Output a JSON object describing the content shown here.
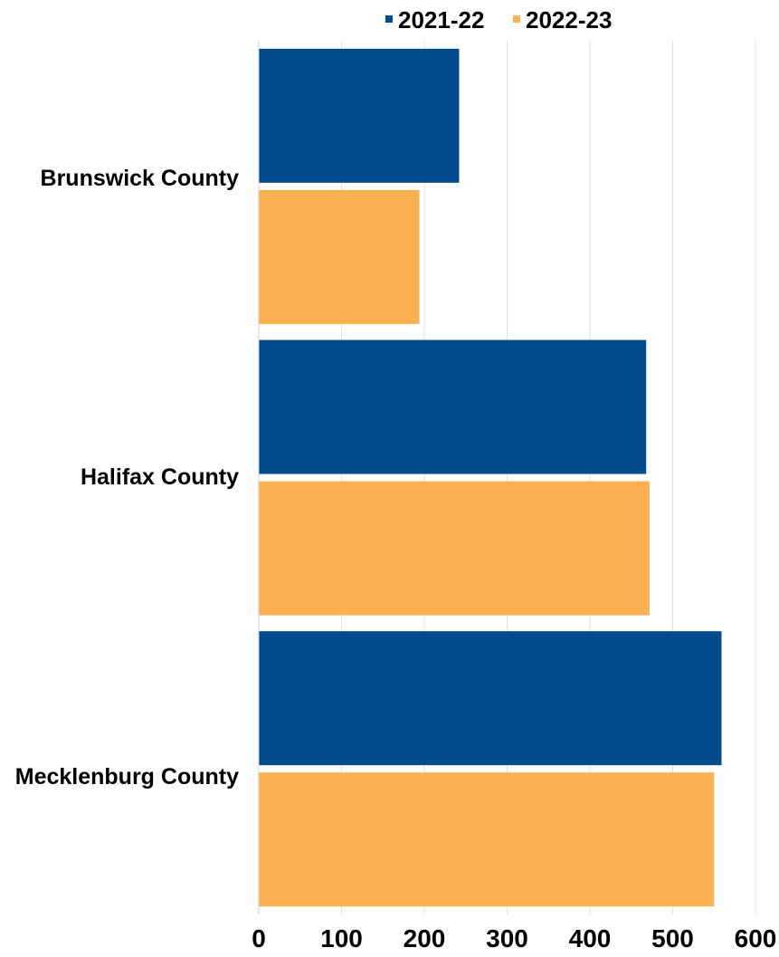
{
  "chart_data": {
    "type": "bar",
    "orientation": "horizontal",
    "categories": [
      "Brunswick County",
      "Halifax County",
      "Mecklenburg County"
    ],
    "series": [
      {
        "name": "2021-22",
        "color": "#004C8C",
        "values": [
          242,
          468,
          559
        ]
      },
      {
        "name": "2022-23",
        "color": "#FBB150",
        "values": [
          194,
          472,
          550
        ]
      }
    ],
    "xlim": [
      0,
      600
    ],
    "xticks": [
      "0",
      "100",
      "200",
      "300",
      "400",
      "500",
      "600"
    ],
    "legend_position": "top-center",
    "grid": "vertical"
  }
}
